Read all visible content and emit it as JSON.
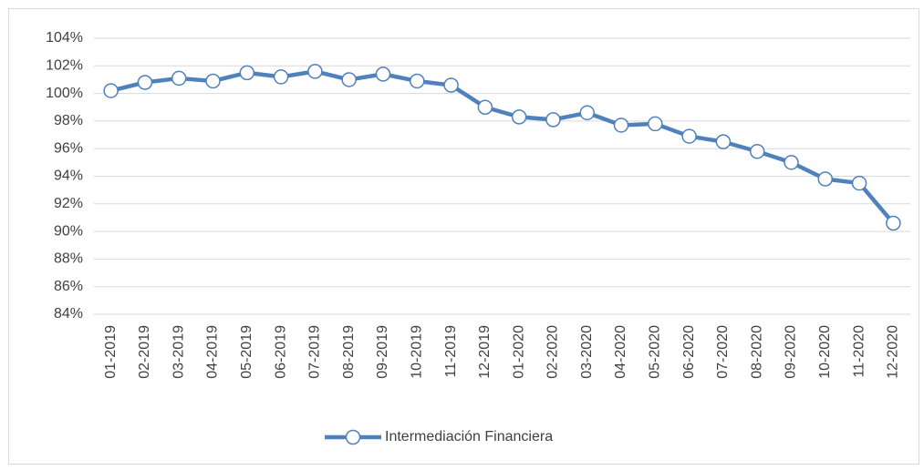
{
  "chart_data": {
    "type": "line",
    "categories": [
      "01-2019",
      "02-2019",
      "03-2019",
      "04-2019",
      "05-2019",
      "06-2019",
      "07-2019",
      "08-2019",
      "09-2019",
      "10-2019",
      "11-2019",
      "12-2019",
      "01-2020",
      "02-2020",
      "03-2020",
      "04-2020",
      "05-2020",
      "06-2020",
      "07-2020",
      "08-2020",
      "09-2020",
      "10-2020",
      "11-2020",
      "12-2020"
    ],
    "series": [
      {
        "name": "Intermediación Financiera",
        "color": "#4f81bd",
        "values": [
          100.2,
          100.8,
          101.1,
          100.9,
          101.5,
          101.2,
          101.6,
          101.0,
          101.4,
          100.9,
          100.6,
          99.0,
          98.3,
          98.1,
          98.6,
          97.7,
          97.8,
          96.9,
          96.5,
          95.8,
          95.0,
          93.8,
          93.5,
          90.6
        ]
      }
    ],
    "ylim": [
      84,
      104
    ],
    "yticks": [
      {
        "value": 84,
        "label": "84%"
      },
      {
        "value": 86,
        "label": "86%"
      },
      {
        "value": 88,
        "label": "88%"
      },
      {
        "value": 90,
        "label": "90%"
      },
      {
        "value": 92,
        "label": "92%"
      },
      {
        "value": 94,
        "label": "94%"
      },
      {
        "value": 96,
        "label": "96%"
      },
      {
        "value": 98,
        "label": "98%"
      },
      {
        "value": 100,
        "label": "100%"
      },
      {
        "value": 102,
        "label": "102%"
      },
      {
        "value": 104,
        "label": "104%"
      }
    ],
    "grid": true,
    "legend": "bottom"
  }
}
